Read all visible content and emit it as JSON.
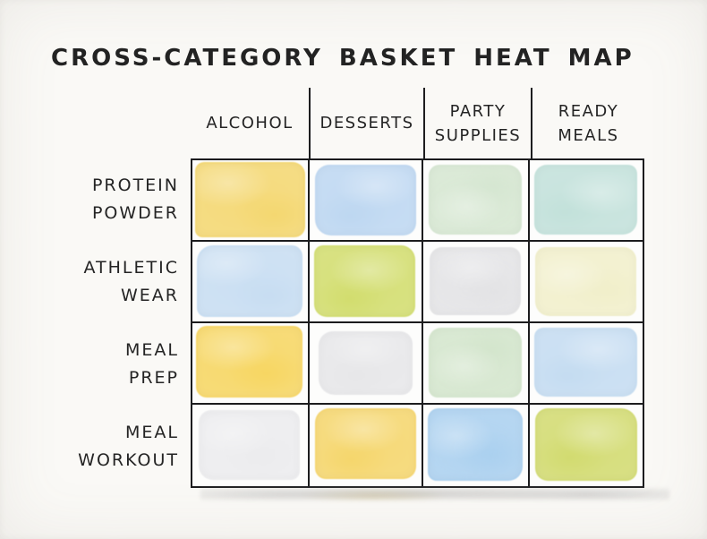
{
  "page": {
    "title": "CROSS-CATEGORY BASKET HEAT MAP"
  },
  "chart_data": {
    "type": "heatmap",
    "title": "CROSS-CATEGORY BASKET HEAT MAP",
    "columns": [
      {
        "label": "ALCOHOL",
        "lines": [
          "ALCOHOL"
        ]
      },
      {
        "label": "DESSERTS",
        "lines": [
          "DESSERTS"
        ]
      },
      {
        "label": "PARTY SUPPLIES",
        "lines": [
          "PARTY",
          "SUPPLIES"
        ]
      },
      {
        "label": "READY MEALS",
        "lines": [
          "READY",
          "MEALS"
        ]
      }
    ],
    "rows": [
      {
        "label": "PROTEIN POWDER",
        "lines": [
          "PROTEIN",
          "POWDER"
        ]
      },
      {
        "label": "ATHLETIC WEAR",
        "lines": [
          "ATHLETIC",
          "WEAR"
        ]
      },
      {
        "label": "MEAL PREP",
        "lines": [
          "MEAL",
          "PREP"
        ]
      },
      {
        "label": "MEAL WORKOUT",
        "lines": [
          "MEAL",
          "WORKOUT"
        ]
      }
    ],
    "cell_colors": [
      [
        "#f4d76f",
        "#bdd7f1",
        "#d5e6d1",
        "#c2e1da"
      ],
      [
        "#c7ddf2",
        "#d2dd6d",
        "#e3e3e5",
        "#f1efca"
      ],
      [
        "#f7d661",
        "#e7e7e9",
        "#d3e5cc",
        "#c4dcf1"
      ],
      [
        "#ececee",
        "#f5d66b",
        "#aad0ef",
        "#d2db6f"
      ]
    ],
    "values_shown": false,
    "legend": "none",
    "style": "hand-drawn watercolor"
  },
  "colors": {
    "ink": "#1d1d1f",
    "paper": "#faf9f6",
    "text": "#242424",
    "table_shadow": "#ababab"
  }
}
